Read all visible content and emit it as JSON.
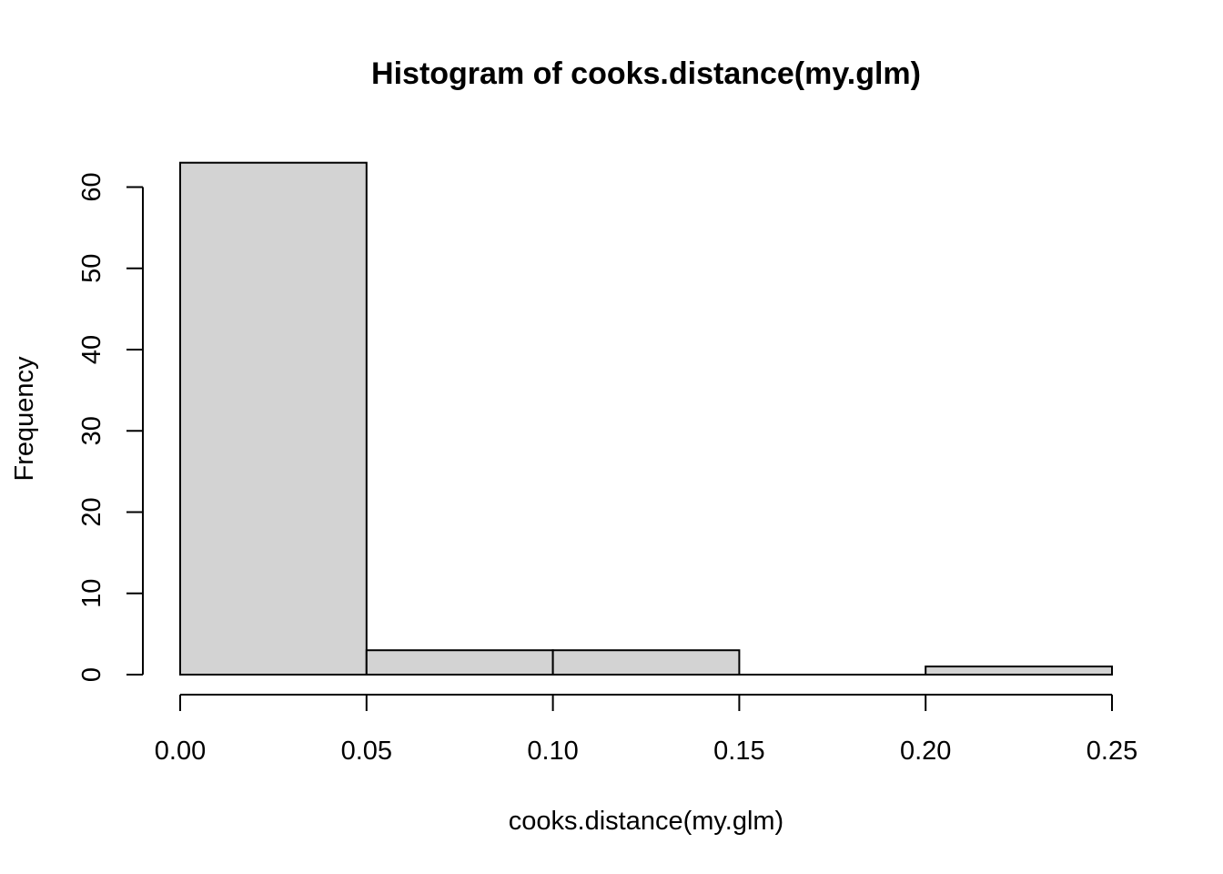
{
  "chart_data": {
    "type": "bar",
    "title": "Histogram of cooks.distance(my.glm)",
    "xlabel": "cooks.distance(my.glm)",
    "ylabel": "Frequency",
    "bins": [
      {
        "start": 0.0,
        "end": 0.05,
        "count": 63
      },
      {
        "start": 0.05,
        "end": 0.1,
        "count": 3
      },
      {
        "start": 0.1,
        "end": 0.15,
        "count": 3
      },
      {
        "start": 0.15,
        "end": 0.2,
        "count": 0
      },
      {
        "start": 0.2,
        "end": 0.25,
        "count": 1
      }
    ],
    "xlim": [
      0,
      0.25
    ],
    "ylim": [
      0,
      63
    ],
    "x_ticks": [
      "0.00",
      "0.05",
      "0.10",
      "0.15",
      "0.20",
      "0.25"
    ],
    "y_ticks": [
      "0",
      "10",
      "20",
      "30",
      "40",
      "50",
      "60"
    ],
    "grid": false,
    "bar_fill": "#d3d3d3",
    "bar_stroke": "#000000"
  }
}
